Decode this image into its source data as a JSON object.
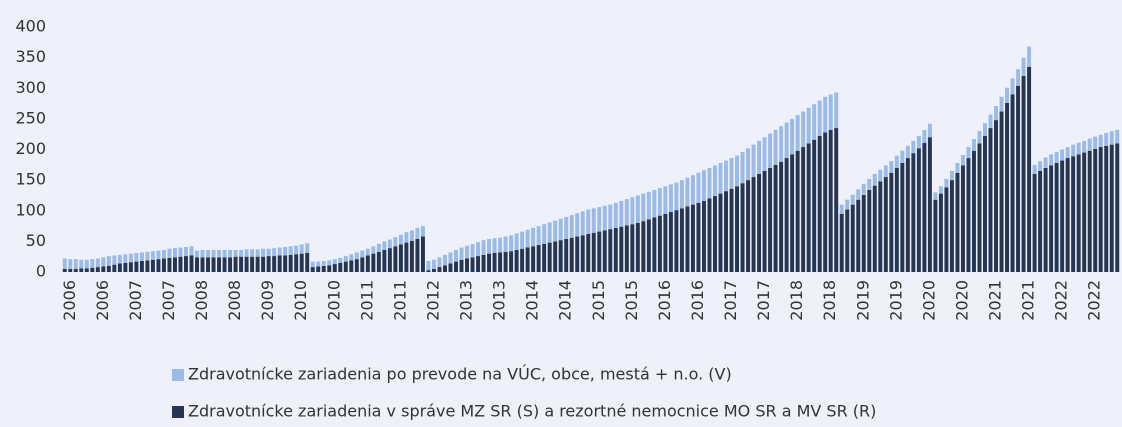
{
  "chart_data": {
    "type": "stacked-bar",
    "categories": [
      null,
      "2006",
      null,
      null,
      null,
      null,
      null,
      "2006",
      null,
      null,
      null,
      null,
      null,
      "2007",
      null,
      null,
      null,
      null,
      null,
      "2007",
      null,
      null,
      null,
      null,
      null,
      "2008",
      null,
      null,
      null,
      null,
      null,
      "2008",
      null,
      null,
      null,
      null,
      null,
      "2009",
      null,
      null,
      null,
      null,
      null,
      "2010",
      null,
      null,
      null,
      null,
      null,
      "2010",
      null,
      null,
      null,
      null,
      null,
      "2011",
      null,
      null,
      null,
      null,
      null,
      "2011",
      null,
      null,
      null,
      null,
      null,
      "2012",
      null,
      null,
      null,
      null,
      null,
      "2013",
      null,
      null,
      null,
      null,
      null,
      "2013",
      null,
      null,
      null,
      null,
      null,
      "2014",
      null,
      null,
      null,
      null,
      null,
      "2014",
      null,
      null,
      null,
      null,
      null,
      "2015",
      null,
      null,
      null,
      null,
      null,
      "2015",
      null,
      null,
      null,
      null,
      null,
      "2016",
      null,
      null,
      null,
      null,
      null,
      "2016",
      null,
      null,
      null,
      null,
      null,
      "2017",
      null,
      null,
      null,
      null,
      null,
      "2017",
      null,
      null,
      null,
      null,
      null,
      "2018",
      null,
      null,
      null,
      null,
      null,
      "2018",
      null,
      null,
      null,
      null,
      null,
      "2019",
      null,
      null,
      null,
      null,
      null,
      "2019",
      null,
      null,
      null,
      null,
      null,
      "2020",
      null,
      null,
      null,
      null,
      null,
      "2020",
      null,
      null,
      null,
      null,
      null,
      "2021",
      null,
      null,
      null,
      null,
      null,
      "2021",
      null,
      null,
      null,
      null,
      null,
      "2022",
      null,
      null,
      null,
      null,
      null,
      "2022",
      null,
      null,
      null,
      null
    ],
    "series": [
      {
        "name": "Zdravotnícke zariadenia v správe MZ SR (S) a rezortné nemocnice MO SR a MV SR (R)",
        "color": "#263552",
        "values": [
          5,
          5,
          5,
          6,
          6,
          7,
          8,
          9,
          10,
          12,
          14,
          15,
          16,
          17,
          18,
          19,
          20,
          21,
          22,
          23,
          24,
          25,
          26,
          27,
          24,
          24,
          24,
          24,
          24,
          24,
          24,
          25,
          25,
          25,
          25,
          25,
          25,
          26,
          26,
          27,
          27,
          28,
          29,
          30,
          31,
          8,
          9,
          10,
          11,
          13,
          15,
          17,
          19,
          21,
          24,
          27,
          30,
          33,
          36,
          39,
          42,
          45,
          48,
          51,
          54,
          58,
          3,
          5,
          8,
          11,
          14,
          17,
          20,
          22,
          24,
          26,
          28,
          30,
          31,
          32,
          33,
          34,
          36,
          38,
          40,
          42,
          44,
          46,
          48,
          50,
          52,
          54,
          56,
          58,
          60,
          62,
          64,
          66,
          68,
          70,
          72,
          74,
          76,
          78,
          80,
          83,
          86,
          89,
          92,
          95,
          98,
          101,
          104,
          107,
          110,
          113,
          116,
          120,
          124,
          128,
          132,
          136,
          140,
          145,
          150,
          155,
          160,
          165,
          170,
          175,
          180,
          186,
          192,
          198,
          204,
          210,
          216,
          222,
          228,
          232,
          235,
          95,
          102,
          110,
          118,
          126,
          134,
          141,
          148,
          155,
          162,
          170,
          178,
          186,
          194,
          202,
          211,
          220,
          118,
          128,
          138,
          150,
          162,
          174,
          186,
          198,
          210,
          222,
          235,
          248,
          262,
          276,
          290,
          304,
          320,
          335,
          160,
          165,
          170,
          174,
          178,
          182,
          186,
          189,
          192,
          195,
          198,
          201,
          204,
          206,
          208,
          210
        ]
      },
      {
        "name": "Zdravotnícke zariadenia po prevode na VÚC, obce, mestá + n.o. (V)",
        "color": "#9bbbe6",
        "values": [
          17,
          16,
          16,
          14,
          14,
          14,
          14,
          15,
          16,
          15,
          14,
          14,
          14,
          14,
          14,
          14,
          14,
          14,
          14,
          15,
          15,
          15,
          15,
          15,
          11,
          12,
          12,
          12,
          12,
          12,
          12,
          11,
          11,
          12,
          12,
          12,
          13,
          12,
          13,
          13,
          14,
          14,
          14,
          15,
          16,
          9,
          8,
          8,
          8,
          8,
          8,
          9,
          10,
          11,
          11,
          11,
          12,
          13,
          14,
          14,
          15,
          16,
          17,
          17,
          18,
          17,
          15,
          15,
          16,
          17,
          18,
          19,
          20,
          21,
          22,
          23,
          24,
          24,
          24,
          24,
          25,
          26,
          27,
          28,
          29,
          30,
          31,
          32,
          33,
          34,
          35,
          36,
          37,
          38,
          39,
          40,
          40,
          40,
          40,
          40,
          41,
          42,
          43,
          44,
          45,
          45,
          45,
          45,
          45,
          45,
          45,
          45,
          46,
          47,
          48,
          49,
          50,
          50,
          50,
          50,
          50,
          50,
          50,
          51,
          52,
          53,
          54,
          55,
          56,
          57,
          58,
          58,
          58,
          58,
          58,
          58,
          58,
          58,
          58,
          58,
          58,
          15,
          16,
          16,
          17,
          18,
          18,
          19,
          19,
          19,
          19,
          20,
          20,
          20,
          20,
          20,
          21,
          22,
          12,
          12,
          14,
          15,
          16,
          17,
          18,
          19,
          20,
          21,
          22,
          23,
          24,
          25,
          26,
          27,
          30,
          33,
          15,
          16,
          17,
          18,
          18,
          18,
          18,
          19,
          19,
          19,
          20,
          20,
          20,
          21,
          22,
          22
        ]
      }
    ],
    "ylim": [
      0,
      400
    ],
    "yticks": [
      0,
      50,
      100,
      150,
      200,
      250,
      300,
      350,
      400
    ],
    "grid": false
  }
}
